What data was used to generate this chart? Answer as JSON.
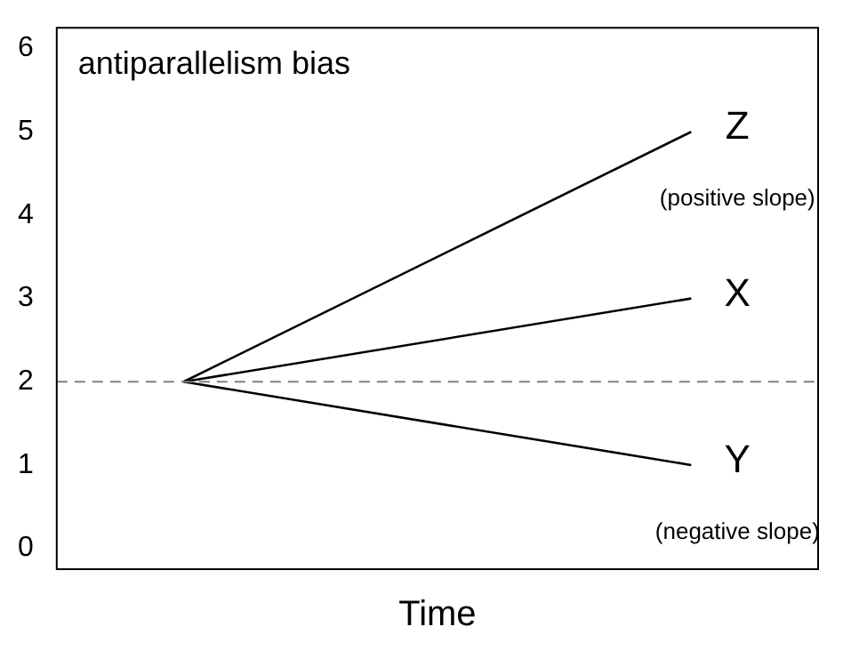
{
  "chart_data": {
    "type": "line",
    "title": "antiparallelism bias",
    "xlabel": "Time",
    "categories": [
      null,
      null,
      null
    ],
    "series": [
      {
        "name": "Z",
        "color": "#000000",
        "values": [
          2,
          null,
          5
        ]
      },
      {
        "name": "X",
        "color": "#000000",
        "values": [
          2,
          null,
          3
        ]
      },
      {
        "name": "Y",
        "color": "#000000",
        "values": [
          2,
          null,
          1
        ]
      }
    ],
    "ylim": [
      -0.25,
      6.25
    ],
    "yticks": [
      0,
      1,
      2,
      3,
      4,
      5,
      6
    ],
    "ref_lines": [
      {
        "axis": "y",
        "value": 2,
        "color": "#808080",
        "line_style": "dashed"
      }
    ],
    "annotations": [
      "(positive slope)",
      "(negative slope)"
    ],
    "tick_labels": "y",
    "grid": false,
    "legend": false,
    "marker": "none",
    "line_style": "solid"
  }
}
